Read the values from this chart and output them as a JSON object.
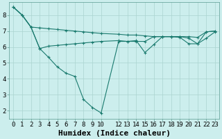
{
  "xlabel": "Humidex (Indice chaleur)",
  "background_color": "#cceeed",
  "grid_color": "#aad4d0",
  "line_color": "#1a7a6e",
  "xlim": [
    -0.5,
    23.5
  ],
  "ylim": [
    1.5,
    8.8
  ],
  "yticks": [
    2,
    3,
    4,
    5,
    6,
    7,
    8
  ],
  "xtick_positions": [
    0,
    1,
    2,
    3,
    4,
    5,
    6,
    7,
    8,
    9,
    10,
    12,
    13,
    14,
    15,
    16,
    17,
    18,
    19,
    20,
    21,
    22,
    23
  ],
  "xtick_labels": [
    "0",
    "1",
    "2",
    "3",
    "4",
    "5",
    "6",
    "7",
    "8",
    "9",
    "10",
    "12",
    "13",
    "14",
    "15",
    "16",
    "17",
    "18",
    "19",
    "20",
    "21",
    "22",
    "23"
  ],
  "series_x": [
    [
      0,
      1,
      2,
      3,
      4,
      5,
      6,
      7,
      8,
      9,
      10,
      12,
      13,
      14,
      15,
      16,
      17,
      18,
      19,
      20,
      21,
      22,
      23
    ],
    [
      0,
      1,
      2,
      3,
      4,
      5,
      6,
      7,
      8,
      9,
      10,
      12,
      13,
      14,
      15,
      16,
      17,
      18,
      19,
      20,
      21,
      22,
      23
    ],
    [
      0,
      1,
      2,
      3,
      4,
      5,
      6,
      7,
      8,
      9,
      10,
      12,
      13,
      14,
      15,
      16,
      17,
      18,
      19,
      20,
      21,
      22,
      23
    ]
  ],
  "series_y": [
    [
      8.5,
      8.0,
      7.25,
      7.2,
      7.15,
      7.1,
      7.05,
      7.0,
      6.95,
      6.9,
      6.85,
      6.8,
      6.75,
      6.75,
      6.7,
      6.65,
      6.65,
      6.65,
      6.65,
      6.65,
      6.6,
      6.95,
      7.0
    ],
    [
      8.5,
      8.0,
      7.25,
      5.9,
      6.05,
      6.1,
      6.15,
      6.2,
      6.25,
      6.3,
      6.35,
      6.4,
      6.35,
      6.35,
      6.35,
      6.65,
      6.65,
      6.65,
      6.6,
      6.2,
      6.2,
      6.55,
      6.95
    ],
    [
      8.5,
      8.0,
      7.25,
      5.9,
      5.35,
      4.75,
      4.35,
      4.15,
      2.7,
      2.2,
      1.85,
      6.35,
      6.35,
      6.4,
      5.65,
      6.15,
      6.65,
      6.65,
      6.65,
      6.55,
      6.2,
      6.95,
      7.0
    ]
  ],
  "xlabel_fontsize": 8,
  "tick_fontsize": 6.5,
  "linewidth": 0.8,
  "markersize": 2.5
}
